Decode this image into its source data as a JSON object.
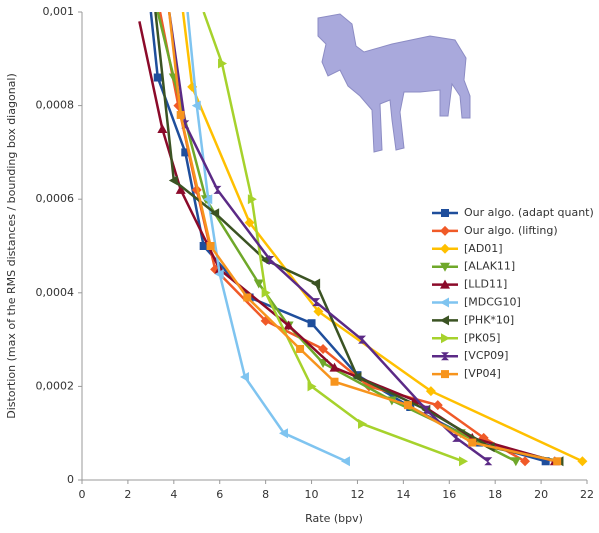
{
  "chart_data": {
    "type": "line",
    "xlabel": "Rate (bpv)",
    "ylabel": "Distortion (max of the RMS distances / bounding box diagonal)",
    "xlim": [
      0,
      22
    ],
    "xticks": [
      0,
      2,
      4,
      6,
      8,
      10,
      12,
      14,
      16,
      18,
      20,
      22
    ],
    "ylim": [
      0,
      0.001
    ],
    "yticks": [
      0,
      {
        "value": 0.0002,
        "label": "0,0002"
      },
      {
        "value": 0.0004,
        "label": "0,0004"
      },
      {
        "value": 0.0006,
        "label": "0,0006"
      },
      {
        "value": 0.0008,
        "label": "0,0008"
      },
      {
        "value": 0.001,
        "label": "0,001"
      }
    ],
    "legend": "right",
    "series": [
      {
        "name": "Our algo. (adapt quant)",
        "color": "#1f4e9c",
        "marker": "square",
        "x": [
          3.0,
          3.3,
          4.5,
          5.3,
          7.3,
          10.0,
          12.0,
          14.3,
          17.3,
          20.2
        ],
        "values": [
          0.001,
          0.00086,
          0.0007,
          0.0005,
          0.00039,
          0.000335,
          0.000224,
          0.000156,
          8e-05,
          4e-05
        ]
      },
      {
        "name": "Our algo. (lifting)",
        "color": "#f05a28",
        "marker": "diamond",
        "x": [
          3.4,
          4.2,
          5.0,
          5.8,
          8.0,
          10.5,
          12.5,
          15.5,
          17.5,
          19.3
        ],
        "values": [
          0.001,
          0.0008,
          0.00062,
          0.00045,
          0.00034,
          0.00028,
          0.0002,
          0.00016,
          9e-05,
          4e-05
        ]
      },
      {
        "name": "[AD01]",
        "color": "#ffc000",
        "marker": "diamond",
        "x": [
          4.4,
          4.8,
          7.3,
          10.3,
          15.2,
          21.8
        ],
        "values": [
          0.001,
          0.00084,
          0.00055,
          0.00036,
          0.00019,
          4e-05
        ]
      },
      {
        "name": "[ALAK11]",
        "color": "#6fa82a",
        "marker": "tri-down",
        "x": [
          3.3,
          4.0,
          5.4,
          7.7,
          9.0,
          10.5,
          13.5,
          16.5,
          18.9
        ],
        "values": [
          0.001,
          0.00086,
          0.0006,
          0.00042,
          0.00033,
          0.00025,
          0.00017,
          0.0001,
          4e-05
        ]
      },
      {
        "name": "[LLD11]",
        "color": "#8b0a2a",
        "marker": "tri-up",
        "x": [
          2.5,
          3.5,
          4.3,
          6.0,
          9.0,
          11.0,
          14.5,
          17.0,
          20.6
        ],
        "values": [
          0.00098,
          0.00075,
          0.00062,
          0.00045,
          0.00033,
          0.00024,
          0.00017,
          9e-05,
          4e-05
        ]
      },
      {
        "name": "[MDCG10]",
        "color": "#7fc4f0",
        "marker": "tri-left",
        "x": [
          4.6,
          5.0,
          5.5,
          6.0,
          7.1,
          8.8,
          11.5
        ],
        "values": [
          0.001,
          0.0008,
          0.0006,
          0.00044,
          0.00022,
          0.0001,
          4e-05
        ]
      },
      {
        "name": "[PHK*10]",
        "color": "#3b5323",
        "marker": "tri-left",
        "x": [
          3.2,
          4.0,
          5.8,
          8.0,
          10.2,
          12.0,
          15.0,
          17.8,
          20.8
        ],
        "values": [
          0.001,
          0.00064,
          0.00057,
          0.00047,
          0.00042,
          0.00022,
          0.00015,
          7e-05,
          4e-05
        ]
      },
      {
        "name": "[PK05]",
        "color": "#a6d22c",
        "marker": "tri-right",
        "x": [
          5.3,
          6.1,
          7.4,
          8.0,
          10.0,
          12.2,
          16.6
        ],
        "values": [
          0.001,
          0.00089,
          0.0006,
          0.0004,
          0.0002,
          0.00012,
          4e-05
        ]
      },
      {
        "name": "[VCP09]",
        "color": "#5b2a86",
        "marker": "hourglass",
        "x": [
          3.8,
          4.5,
          5.9,
          8.2,
          10.2,
          12.2,
          15.0,
          16.3,
          17.7
        ],
        "values": [
          0.001,
          0.00076,
          0.00062,
          0.00047,
          0.00038,
          0.0003,
          0.00015,
          9e-05,
          4e-05
        ]
      },
      {
        "name": "[VP04]",
        "color": "#f7941d",
        "marker": "square",
        "x": [
          3.8,
          4.3,
          5.6,
          7.2,
          9.5,
          11.0,
          14.2,
          17.0,
          20.7
        ],
        "values": [
          0.001,
          0.00078,
          0.0005,
          0.00039,
          0.00028,
          0.00021,
          0.00016,
          8e-05,
          4e-05
        ]
      }
    ]
  }
}
